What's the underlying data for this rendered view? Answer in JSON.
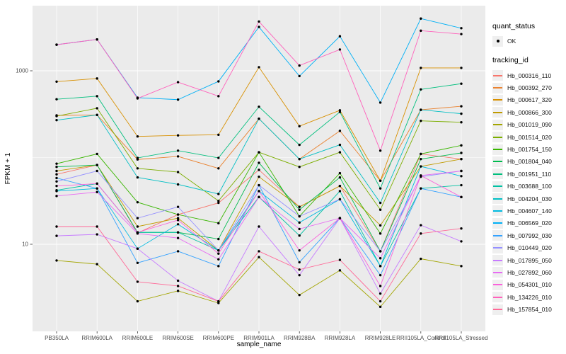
{
  "figure": {
    "background": "#FFFFFF",
    "panel_background": "#EBEBEB",
    "grid_color": "#FFFFFF",
    "tick_label_color": "#4D4D4D",
    "axis_title_color": "#000000",
    "point_color": "#000000",
    "legend_key_background": "#EFEFEF"
  },
  "chart_data": {
    "type": "line",
    "title": "",
    "xlabel": "sample_name",
    "ylabel": "FPKM + 1",
    "y_scale": "log10",
    "y_tick_labels": [
      "10",
      "1000"
    ],
    "y_tick_values": [
      10,
      1000
    ],
    "y_minor_values": [
      100
    ],
    "ylim": [
      1.1,
      5600
    ],
    "grid": true,
    "legend_position": "right",
    "categories": [
      "PB350LA",
      "RRIM600LA",
      "RRIM600LE",
      "RRIM600SE",
      "RRIM600PE",
      "RRIM901LA",
      "RRIM928BA",
      "RRIM928LA",
      "RRIM928LE",
      "RRII105LA_Control",
      "RRII105LA_Stressed"
    ],
    "legend": {
      "quant_status_title": "quant_status",
      "quant_status_items": [
        "OK"
      ],
      "tracking_id_title": "tracking_id"
    },
    "series": [
      {
        "name": "Hb_000316_110",
        "color": "#F8766D",
        "values": [
          64,
          82,
          13.5,
          22,
          30,
          72,
          27,
          47,
          8.3,
          110,
          96
        ]
      },
      {
        "name": "Hb_000392_270",
        "color": "#EA8331",
        "values": [
          306,
          310,
          95,
          103,
          75,
          280,
          96,
          203,
          54,
          355,
          390
        ]
      },
      {
        "name": "Hb_000617_320",
        "color": "#D89000",
        "values": [
          750,
          815,
          175,
          180,
          183,
          1100,
          230,
          350,
          54,
          1080,
          1080
        ]
      },
      {
        "name": "Hb_000866_300",
        "color": "#C09B00",
        "values": [
          70,
          82,
          16,
          20,
          8.5,
          60,
          27,
          47,
          16.5,
          79,
          96
        ]
      },
      {
        "name": "Hb_001019_090",
        "color": "#A3A500",
        "values": [
          6.5,
          5.9,
          2.2,
          2.9,
          2.1,
          7.1,
          2.6,
          5.0,
          1.9,
          6.8,
          5.6
        ]
      },
      {
        "name": "Hb_001514_020",
        "color": "#7CAE00",
        "values": [
          300,
          370,
          75,
          68,
          31.6,
          115,
          78,
          115,
          25,
          265,
          255
        ]
      },
      {
        "name": "Hb_001754_150",
        "color": "#39B600",
        "values": [
          85,
          110,
          30.5,
          22,
          17.5,
          115,
          21,
          66,
          13.3,
          110,
          138
        ]
      },
      {
        "name": "Hb_001804_040",
        "color": "#00BB4E",
        "values": [
          78,
          82,
          13.7,
          13.7,
          11.5,
          87,
          25,
          59,
          8.3,
          96,
          113
        ]
      },
      {
        "name": "Hb_001951_110",
        "color": "#00BF7D",
        "values": [
          470,
          510,
          99,
          120,
          99,
          385,
          140,
          335,
          44,
          610,
          710
        ]
      },
      {
        "name": "Hb_003688_100",
        "color": "#00C1A3",
        "values": [
          42,
          50,
          13.7,
          13.7,
          8.5,
          35,
          12.6,
          41,
          5.6,
          44,
          48
        ]
      },
      {
        "name": "Hb_004204_030",
        "color": "#00BFC4",
        "values": [
          270,
          310,
          59,
          49,
          38,
          280,
          96,
          140,
          30,
          355,
          320
        ]
      },
      {
        "name": "Hb_004607_140",
        "color": "#00BAE0",
        "values": [
          41,
          44,
          8.9,
          17,
          8.5,
          41,
          17.8,
          33,
          5.6,
          79,
          61
        ]
      },
      {
        "name": "Hb_006569_020",
        "color": "#00B0F6",
        "values": [
          2000,
          2300,
          490,
          465,
          755,
          3200,
          870,
          2500,
          430,
          4000,
          3100
        ]
      },
      {
        "name": "Hb_007992_030",
        "color": "#35A2FF",
        "values": [
          58,
          44,
          6.1,
          8.3,
          5.6,
          48,
          6.2,
          20,
          4.4,
          44,
          35
        ]
      },
      {
        "name": "Hb_010449_020",
        "color": "#9590FF",
        "values": [
          53,
          70,
          20,
          27,
          8.5,
          48,
          21,
          33,
          8.3,
          60,
          70
        ]
      },
      {
        "name": "Hb_017895_050",
        "color": "#C77CFF",
        "values": [
          12.5,
          13,
          8.9,
          3.8,
          2.2,
          16,
          4.4,
          20,
          2.7,
          16.6,
          10.8
        ]
      },
      {
        "name": "Hb_027892_060",
        "color": "#E76BF3",
        "values": [
          36,
          40,
          13.3,
          11.8,
          6.7,
          35,
          15,
          20,
          6.9,
          62,
          70
        ]
      },
      {
        "name": "Hb_054301_010",
        "color": "#FA62DB",
        "values": [
          47,
          50,
          13.7,
          19,
          7.8,
          41,
          8.5,
          20,
          3.3,
          62,
          35
        ]
      },
      {
        "name": "Hb_134226_010",
        "color": "#FF62BC",
        "values": [
          2000,
          2300,
          480,
          740,
          510,
          3700,
          1150,
          1760,
          120,
          2900,
          2650
        ]
      },
      {
        "name": "Hb_157854_010",
        "color": "#FF6A98",
        "values": [
          16,
          16,
          3.7,
          3.3,
          2.2,
          8.3,
          5.1,
          6.6,
          2.2,
          13.3,
          15.2
        ]
      }
    ]
  }
}
